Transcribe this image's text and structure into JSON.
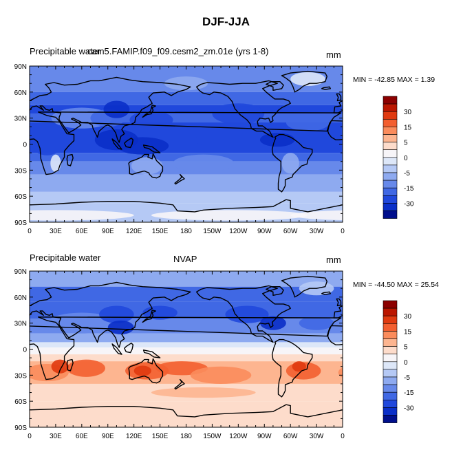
{
  "title": "DJF-JJA",
  "panels": [
    {
      "left_label": "Precipitable water",
      "center_label": "cam5.FAMIP.f09_f09.cesm2_zm.01e (yrs 1-8)",
      "units": "mm",
      "min_max": "MIN = -42.85 MAX =   1.39",
      "field": "model"
    },
    {
      "left_label": "Precipitable water",
      "center_label": "NVAP",
      "units": "mm",
      "min_max": "MIN = -44.50 MAX = 25.54",
      "field": "obs"
    }
  ],
  "lat_ticks": [
    "90N",
    "60N",
    "30N",
    "0",
    "30S",
    "60S",
    "90S"
  ],
  "lon_ticks": [
    "0",
    "30E",
    "60E",
    "90E",
    "120E",
    "150E",
    "180",
    "150W",
    "120W",
    "90W",
    "60W",
    "30W",
    "0"
  ],
  "colorbar": {
    "labels": [
      "30",
      "15",
      "5",
      "0",
      "-5",
      "-15",
      "-30"
    ],
    "colors": [
      "#8c0000",
      "#bb1600",
      "#e03a10",
      "#f35f30",
      "#fb8c5c",
      "#fdb590",
      "#fddccb",
      "#f7f5f8",
      "#dde7f8",
      "#b5c9f5",
      "#8eaaf0",
      "#6789ea",
      "#4068e4",
      "#2048dc",
      "#0a2fc8",
      "#000f8c"
    ]
  }
}
